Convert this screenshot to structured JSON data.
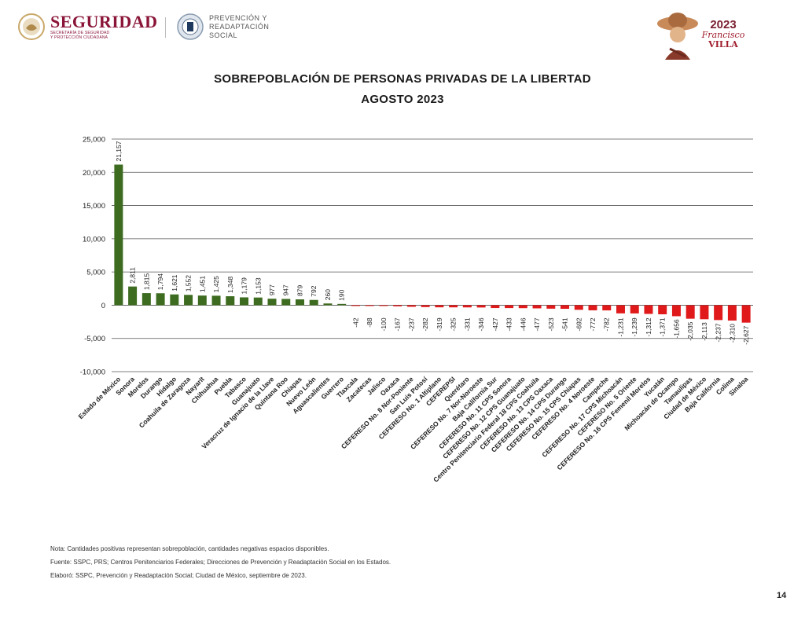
{
  "header": {
    "org_name": "SEGURIDAD",
    "org_subtitle_1": "SECRETARÍA DE SEGURIDAD",
    "org_subtitle_2": "Y PROTECCIÓN CIUDADANA",
    "dept_line_1": "PREVENCIÓN Y",
    "dept_line_2": "READAPTACIÓN",
    "dept_line_3": "SOCIAL",
    "year_logo": "2023",
    "year_logo_name_1": "Francisco",
    "year_logo_name_2": "VILLA"
  },
  "title_line_1": "SOBREPOBLACIÓN DE PERSONAS PRIVADAS DE LA LIBERTAD",
  "title_line_2": "AGOSTO 2023",
  "colors": {
    "positive": "#3d6b1f",
    "negative": "#e0191b",
    "grid": "#555555"
  },
  "chart_data": {
    "type": "bar",
    "title": "",
    "xlabel": "",
    "ylabel": "",
    "ylim": [
      -10000,
      25000
    ],
    "yticks": [
      25000,
      20000,
      15000,
      10000,
      5000,
      0,
      -5000,
      -10000
    ],
    "ytick_labels": [
      "25,000",
      "20,000",
      "15,000",
      "10,000",
      "5,000",
      "0",
      "-5,000",
      "-10,000"
    ],
    "grid": true,
    "categories": [
      "Estado de México",
      "Sonora",
      "Morelos",
      "Durango",
      "Hidalgo",
      "Coahuila de Zaragoza",
      "Nayarit",
      "Chihuahua",
      "Puebla",
      "Tabasco",
      "Guanajuato",
      "Veracruz de Ignacio de la Llave",
      "Quintana Roo",
      "Chiapas",
      "Nuevo León",
      "Aguascalientes",
      "Guerrero",
      "Tlaxcala",
      "Zacatecas",
      "Jalisco",
      "Oaxaca",
      "CEFERESO No. 8 Nor-Poniente",
      "San Luis Potosí",
      "CEFERESO No. 1 Altiplano",
      "CEFEREPSI",
      "Querétaro",
      "CEFERESO No. 7 Nor-Noroeste",
      "Baja California Sur",
      "CEFERESO No. 11 CPS Sonora",
      "CEFERESO No. 12 CPS Guanajuato",
      "Centro Penitenciario Federal 18 CPS Coahuila",
      "CEFERESO No. 13 CPS Oaxaca",
      "CEFERESO No. 14 CPS Durango",
      "CEFERESO No. 15 CPS Chiapas",
      "CEFERESO No. 4 Noroeste",
      "Campeche",
      "CEFERESO No. 17 CPS Michoacán",
      "CEFERESO No. 5 Oriente",
      "CEFERESO No. 16 CPS Femenil Morelos",
      "Yucatán",
      "Michoacán de Ocampo",
      "Tamaulipas",
      "Ciudad de México",
      "Baja California",
      "Colima",
      "Sinaloa"
    ],
    "values": [
      21157,
      2811,
      1815,
      1794,
      1621,
      1552,
      1451,
      1425,
      1348,
      1179,
      1153,
      977,
      947,
      879,
      792,
      260,
      190,
      -42,
      -88,
      -100,
      -167,
      -237,
      -282,
      -319,
      -325,
      -331,
      -346,
      -427,
      -433,
      -446,
      -477,
      -523,
      -541,
      -692,
      -772,
      -782,
      -1231,
      -1239,
      -1312,
      -1371,
      -1656,
      -2035,
      -2113,
      -2237,
      -2310,
      -2627
    ],
    "value_labels": [
      "21,157",
      "2,811",
      "1,815",
      "1,794",
      "1,621",
      "1,552",
      "1,451",
      "1,425",
      "1,348",
      "1,179",
      "1,153",
      "977",
      "947",
      "879",
      "792",
      "260",
      "190",
      "-42",
      "-88",
      "-100",
      "-167",
      "-237",
      "-282",
      "-319",
      "-325",
      "-331",
      "-346",
      "-427",
      "-433",
      "-446",
      "-477",
      "-523",
      "-541",
      "-692",
      "-772",
      "-782",
      "-1,231",
      "-1,239",
      "-1,312",
      "-1,371",
      "-1,656",
      "-2,035",
      "-2,113",
      "-2,237",
      "-2,310",
      "-2,627"
    ]
  },
  "notes": {
    "line_1": "Nota: Cantidades positivas representan sobrepoblación, cantidades negativas espacios disponibles.",
    "line_2": "Fuente: SSPC, PRS; Centros Penitenciarios Federales; Direcciones de Prevención y Readaptación Social en los Estados.",
    "line_3": "Elaboró: SSPC, Prevención y Readaptación Social; Ciudad de México, septiembre de 2023."
  },
  "page_number": "14"
}
